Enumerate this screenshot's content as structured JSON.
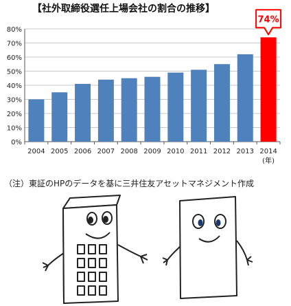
{
  "title": "【社外取締役選任上場会社の割合の推移】",
  "note": "（注）東証のHPのデータを基に三井住友アセットマネジメント作成",
  "chart_data": {
    "type": "bar",
    "title": "【社外取締役選任上場会社の割合の推移】",
    "categories": [
      "2004",
      "2005",
      "2006",
      "2007",
      "2008",
      "2009",
      "2010",
      "2011",
      "2012",
      "2013",
      "2014"
    ],
    "values": [
      30,
      35,
      41,
      44,
      45,
      46,
      49,
      51,
      55,
      62,
      74
    ],
    "highlight_category": "2014",
    "highlight_label": "74%",
    "x_unit_label": "(年)",
    "ylim": [
      0,
      80
    ],
    "yticks": [
      0,
      10,
      20,
      30,
      40,
      50,
      60,
      70,
      80
    ],
    "ytick_labels": [
      "0%",
      "10%",
      "20%",
      "30%",
      "40%",
      "50%",
      "60%",
      "70%",
      "80%"
    ],
    "grid": true,
    "colors": {
      "bar": "#4f81bd",
      "highlight": "#ff0000",
      "callout_border": "#ff0000",
      "callout_text": "#ff0000"
    }
  },
  "illustration": {
    "left_figure": "tall-building-character",
    "right_figure": "paper-character"
  }
}
